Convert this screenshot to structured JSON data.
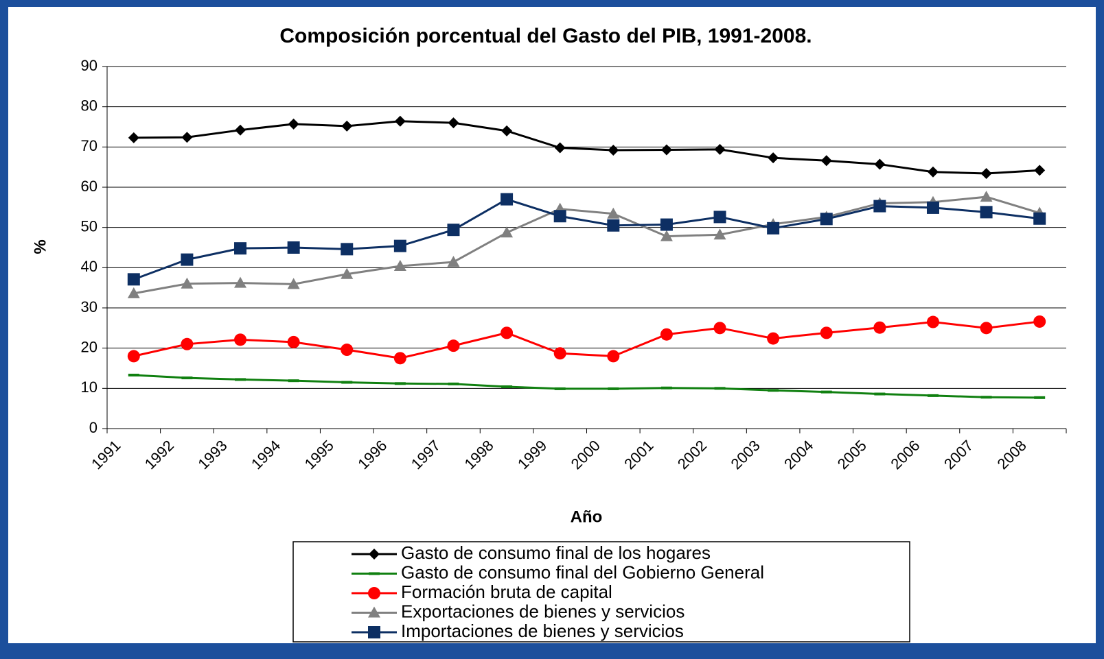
{
  "chart_data": {
    "type": "line",
    "title": "Composición porcentual  del Gasto del PIB, 1991-2008.",
    "x_label": "Año",
    "y_label": "%",
    "categories": [
      "1991",
      "1992",
      "1993",
      "1994",
      "1995",
      "1996",
      "1997",
      "1998",
      "1999",
      "2000",
      "2001",
      "2002",
      "2003",
      "2004",
      "2005",
      "2006",
      "2007",
      "2008"
    ],
    "ylim": [
      0,
      90
    ],
    "yticks": [
      0,
      10,
      20,
      30,
      40,
      50,
      60,
      70,
      80,
      90
    ],
    "grid": true,
    "series": [
      {
        "name": "Gasto de consumo final de los hogares",
        "color": "#000000",
        "marker": "diamond",
        "values": [
          72.3,
          72.4,
          74.2,
          75.7,
          75.2,
          76.4,
          76.0,
          74.0,
          69.8,
          69.2,
          69.3,
          69.4,
          67.3,
          66.6,
          65.7,
          63.8,
          63.4,
          64.2
        ]
      },
      {
        "name": "Gasto de consumo final del Gobierno General",
        "color": "#108010",
        "marker": "dash",
        "values": [
          13.3,
          12.6,
          12.2,
          11.9,
          11.5,
          11.2,
          11.1,
          10.4,
          9.9,
          9.9,
          10.1,
          10.0,
          9.5,
          9.1,
          8.6,
          8.2,
          7.8,
          7.7
        ]
      },
      {
        "name": "Formación bruta de capital",
        "color": "#ff0000",
        "marker": "circle",
        "values": [
          18.0,
          21.0,
          22.1,
          21.5,
          19.6,
          17.5,
          20.6,
          23.8,
          18.7,
          18.0,
          23.4,
          25.0,
          22.4,
          23.8,
          25.1,
          26.5,
          25.0,
          26.6
        ]
      },
      {
        "name": "Exportaciones de bienes y servicios",
        "color": "#808080",
        "marker": "triangle",
        "values": [
          33.6,
          36.0,
          36.2,
          35.9,
          38.4,
          40.4,
          41.4,
          48.7,
          54.6,
          53.4,
          47.8,
          48.2,
          50.8,
          52.6,
          56.0,
          56.3,
          57.6,
          53.6
        ]
      },
      {
        "name": "Importaciones de bienes y servicios",
        "color": "#0d2f63",
        "marker": "square",
        "values": [
          37.1,
          42.0,
          44.8,
          45.0,
          44.6,
          45.4,
          49.4,
          57.0,
          52.8,
          50.5,
          50.7,
          52.6,
          49.8,
          52.1,
          55.3,
          54.9,
          53.8,
          52.2
        ]
      }
    ]
  }
}
